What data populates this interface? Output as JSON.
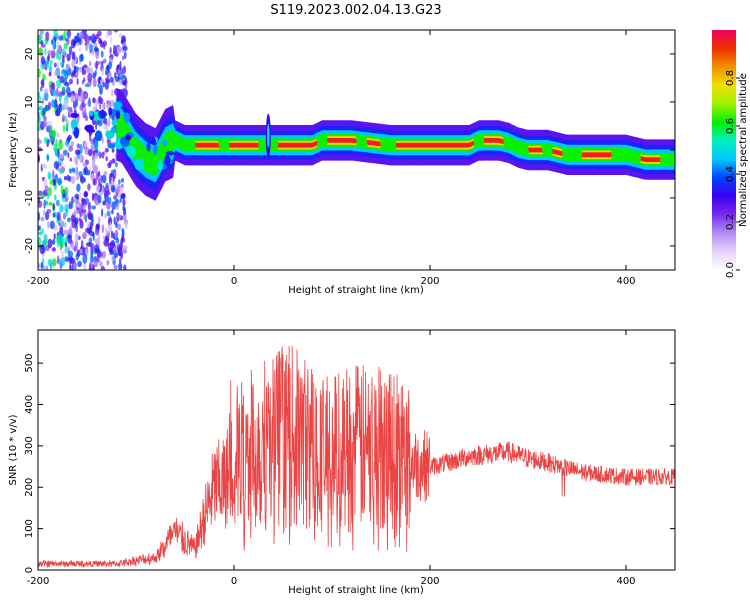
{
  "title": "S119.2023.002.04.13.G23",
  "chart_data": [
    {
      "type": "heatmap",
      "xlabel": "Height of straight line (km)",
      "ylabel": "Frequency (Hz)",
      "xlim": [
        -200,
        450
      ],
      "ylim": [
        -25,
        25
      ],
      "xticks": [
        -200,
        0,
        200,
        400
      ],
      "yticks": [
        -20,
        -10,
        0,
        10,
        20
      ],
      "colorbar": {
        "label": "Normalized spectral amplitude",
        "range": [
          0,
          1
        ],
        "ticks": [
          0.0,
          0.2,
          0.4,
          0.6,
          0.8
        ],
        "tick_labels": [
          "0.0",
          "0.2",
          "0.4",
          "0.6",
          "0.8"
        ],
        "colormap": [
          "#ffffff",
          "#e6d2fa",
          "#b28cf0",
          "#7a28f0",
          "#3c00f0",
          "#0040ff",
          "#00c8ff",
          "#00f0c0",
          "#00f000",
          "#a0f000",
          "#f0e000",
          "#f09000",
          "#f03000",
          "#f00060"
        ]
      },
      "ridge": {
        "x": [
          -170,
          -150,
          -130,
          -115,
          -100,
          -90,
          -80,
          -70,
          -60,
          -50,
          -30,
          -10,
          0,
          20,
          30,
          40,
          60,
          80,
          90,
          100,
          120,
          140,
          160,
          180,
          200,
          220,
          240,
          250,
          270,
          280,
          290,
          300,
          320,
          340,
          360,
          380,
          400,
          420,
          450
        ],
        "y": [
          5,
          4,
          6,
          5,
          0,
          -2,
          -3,
          1,
          2,
          1,
          1,
          1,
          1,
          1,
          1,
          1,
          1,
          1,
          2,
          2,
          2,
          1.5,
          1,
          1,
          1,
          1,
          1,
          2,
          2,
          1.5,
          0.5,
          0,
          0,
          -1,
          -1,
          -1,
          -1,
          -2,
          -2
        ]
      }
    },
    {
      "type": "line",
      "xlabel": "Height of straight line (km)",
      "ylabel": "SNR (10 * v/v)",
      "xlim": [
        -200,
        450
      ],
      "ylim": [
        0,
        580
      ],
      "xticks": [
        -200,
        0,
        200,
        400
      ],
      "yticks": [
        0,
        100,
        200,
        300,
        400,
        500
      ],
      "color": "#e83030",
      "envelope": {
        "x": [
          -200,
          -120,
          -80,
          -60,
          -50,
          -40,
          -30,
          -20,
          -10,
          0,
          20,
          40,
          60,
          80,
          100,
          120,
          140,
          160,
          180,
          200,
          220,
          240,
          260,
          280,
          300,
          320,
          340,
          360,
          380,
          400,
          420,
          450
        ],
        "y": [
          15,
          15,
          30,
          90,
          70,
          50,
          130,
          200,
          210,
          260,
          290,
          320,
          320,
          300,
          280,
          300,
          290,
          310,
          260,
          250,
          260,
          275,
          280,
          285,
          270,
          260,
          245,
          235,
          230,
          225,
          225,
          225
        ]
      }
    }
  ]
}
